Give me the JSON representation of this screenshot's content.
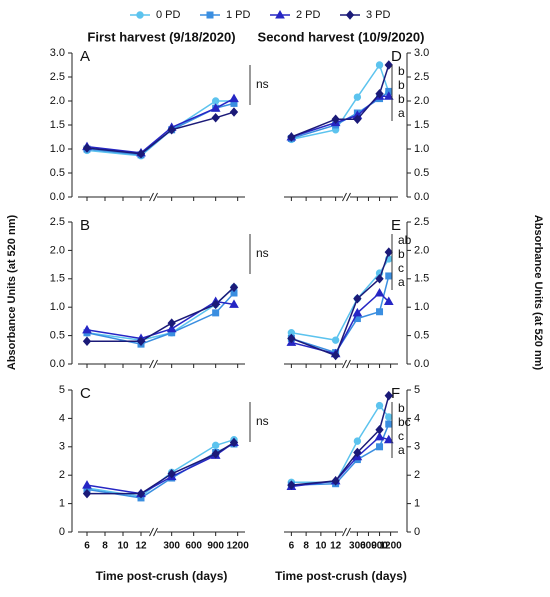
{
  "chart_data": [
    {
      "type": "line",
      "label": "A",
      "title": "First harvest (9/18/2020)",
      "yaxis_side": "left",
      "x": [
        6,
        12,
        300,
        900,
        1150
      ],
      "xsegments": [
        {
          "xlim": [
            5,
            13
          ],
          "xticks": [
            6,
            8,
            10,
            12
          ]
        },
        {
          "xlim": [
            100,
            1300
          ],
          "xticks": [
            300,
            600,
            900,
            1200
          ]
        }
      ],
      "ylim": [
        0,
        3
      ],
      "yticks": [
        {
          "value": 0,
          "label": "0.0"
        },
        0.5,
        {
          "value": 1,
          "label": "1.0"
        },
        1.5,
        {
          "value": 2,
          "label": "2.0"
        },
        2.5,
        {
          "value": 3,
          "label": "3.0"
        }
      ],
      "series": [
        {
          "name": "0 PD",
          "color": "#5cc3ee",
          "marker": "circle",
          "values": [
            0.97,
            0.86,
            1.4,
            2.0,
            2.0
          ]
        },
        {
          "name": "1 PD",
          "color": "#3a8ee0",
          "marker": "square",
          "values": [
            1.0,
            0.88,
            1.4,
            1.85,
            1.95
          ]
        },
        {
          "name": "2 PD",
          "color": "#2626c4",
          "marker": "triangle",
          "values": [
            1.05,
            0.92,
            1.45,
            1.85,
            2.05
          ]
        },
        {
          "name": "3 PD",
          "color": "#1b1a78",
          "marker": "diamond",
          "values": [
            1.02,
            0.9,
            1.4,
            1.65,
            1.77
          ]
        }
      ],
      "annotations": [
        "ns"
      ]
    },
    {
      "type": "line",
      "label": "B",
      "ylabel": "Absorbance Units (at 520 nm)",
      "yaxis_side": "left",
      "x": [
        6,
        12,
        300,
        900,
        1150
      ],
      "xsegments": [
        {
          "xlim": [
            5,
            13
          ],
          "xticks": [
            6,
            8,
            10,
            12
          ]
        },
        {
          "xlim": [
            100,
            1300
          ],
          "xticks": [
            300,
            600,
            900,
            1200
          ]
        }
      ],
      "ylim": [
        0,
        2.5
      ],
      "yticks": [
        {
          "value": 0,
          "label": "0.0"
        },
        0.5,
        {
          "value": 1,
          "label": "1.0"
        },
        1.5,
        {
          "value": 2,
          "label": "2.0"
        },
        2.5
      ],
      "series": [
        {
          "name": "0 PD",
          "color": "#5cc3ee",
          "marker": "circle",
          "values": [
            0.55,
            0.42,
            0.55,
            1.05,
            1.35
          ]
        },
        {
          "name": "1 PD",
          "color": "#3a8ee0",
          "marker": "square",
          "values": [
            0.55,
            0.35,
            0.55,
            0.9,
            1.25
          ]
        },
        {
          "name": "2 PD",
          "color": "#2626c4",
          "marker": "triangle",
          "values": [
            0.6,
            0.45,
            0.62,
            1.1,
            1.05
          ]
        },
        {
          "name": "3 PD",
          "color": "#1b1a78",
          "marker": "diamond",
          "values": [
            0.4,
            0.4,
            0.72,
            1.05,
            1.35
          ]
        }
      ],
      "annotations": [
        "ns"
      ]
    },
    {
      "type": "line",
      "label": "C",
      "xlabel": "Time post-crush (days)",
      "yaxis_side": "left",
      "x": [
        6,
        12,
        300,
        900,
        1150
      ],
      "xsegments": [
        {
          "xlim": [
            5,
            13
          ],
          "xticks": [
            6,
            8,
            10,
            12
          ]
        },
        {
          "xlim": [
            100,
            1300
          ],
          "xticks": [
            300,
            600,
            900,
            1200
          ]
        }
      ],
      "ylim": [
        0,
        5
      ],
      "yticks": [
        0,
        1,
        2,
        3,
        4,
        5
      ],
      "series": [
        {
          "name": "0 PD",
          "color": "#5cc3ee",
          "marker": "circle",
          "values": [
            1.55,
            1.25,
            2.1,
            3.05,
            3.25
          ]
        },
        {
          "name": "1 PD",
          "color": "#3a8ee0",
          "marker": "square",
          "values": [
            1.5,
            1.2,
            1.9,
            2.8,
            3.1
          ]
        },
        {
          "name": "2 PD",
          "color": "#2626c4",
          "marker": "triangle",
          "values": [
            1.65,
            1.35,
            1.95,
            2.7,
            3.15
          ]
        },
        {
          "name": "3 PD",
          "color": "#1b1a78",
          "marker": "diamond",
          "values": [
            1.35,
            1.35,
            2.05,
            2.75,
            3.15
          ]
        }
      ],
      "annotations": [
        "ns"
      ]
    },
    {
      "type": "line",
      "label": "D",
      "title": "Second harvest (10/9/2020)",
      "yaxis_side": "right",
      "x": [
        6,
        12,
        300,
        900,
        1150
      ],
      "xsegments": [
        {
          "xlim": [
            5,
            13
          ],
          "xticks": [
            6,
            8,
            10,
            12
          ]
        },
        {
          "xlim": [
            100,
            1400
          ],
          "xticks": [
            300,
            600,
            900,
            1200
          ]
        }
      ],
      "ylim": [
        0,
        3
      ],
      "yticks": [
        {
          "value": 0,
          "label": "0.0"
        },
        0.5,
        {
          "value": 1,
          "label": "1.0"
        },
        1.5,
        {
          "value": 2,
          "label": "2.0"
        },
        2.5,
        {
          "value": 3,
          "label": "3.0"
        }
      ],
      "series": [
        {
          "name": "0 PD",
          "color": "#5cc3ee",
          "marker": "circle",
          "values": [
            1.2,
            1.4,
            2.08,
            2.75,
            2.18
          ]
        },
        {
          "name": "1 PD",
          "color": "#3a8ee0",
          "marker": "square",
          "values": [
            1.22,
            1.5,
            1.75,
            2.05,
            2.2
          ]
        },
        {
          "name": "2 PD",
          "color": "#2626c4",
          "marker": "triangle",
          "values": [
            1.25,
            1.55,
            1.7,
            2.1,
            2.1
          ]
        },
        {
          "name": "3 PD",
          "color": "#1b1a78",
          "marker": "diamond",
          "values": [
            1.25,
            1.62,
            1.62,
            2.15,
            2.75
          ]
        }
      ],
      "annotations": [
        "b",
        "b",
        "b",
        "a"
      ]
    },
    {
      "type": "line",
      "label": "E",
      "ylabel": "Absorbance Units (at 520 nm)",
      "yaxis_side": "right",
      "x": [
        6,
        12,
        300,
        900,
        1150
      ],
      "xsegments": [
        {
          "xlim": [
            5,
            13
          ],
          "xticks": [
            6,
            8,
            10,
            12
          ]
        },
        {
          "xlim": [
            100,
            1400
          ],
          "xticks": [
            300,
            600,
            900,
            1200
          ]
        }
      ],
      "ylim": [
        0,
        2.5
      ],
      "yticks": [
        {
          "value": 0,
          "label": "0.0"
        },
        0.5,
        {
          "value": 1,
          "label": "1.0"
        },
        1.5,
        {
          "value": 2,
          "label": "2.0"
        },
        2.5
      ],
      "series": [
        {
          "name": "0 PD",
          "color": "#5cc3ee",
          "marker": "circle",
          "values": [
            0.55,
            0.42,
            1.15,
            1.6,
            1.85
          ]
        },
        {
          "name": "1 PD",
          "color": "#3a8ee0",
          "marker": "square",
          "values": [
            0.45,
            0.2,
            0.8,
            0.92,
            1.55
          ]
        },
        {
          "name": "2 PD",
          "color": "#2626c4",
          "marker": "triangle",
          "values": [
            0.38,
            0.18,
            0.9,
            1.25,
            1.1
          ]
        },
        {
          "name": "3 PD",
          "color": "#1b1a78",
          "marker": "diamond",
          "values": [
            0.45,
            0.15,
            1.15,
            1.5,
            1.97
          ]
        }
      ],
      "annotations": [
        "ab",
        "b",
        "c",
        "a"
      ]
    },
    {
      "type": "line",
      "label": "F",
      "xlabel": "Time post-crush (days)",
      "yaxis_side": "right",
      "x": [
        6,
        12,
        300,
        900,
        1150
      ],
      "xsegments": [
        {
          "xlim": [
            5,
            13
          ],
          "xticks": [
            6,
            8,
            10,
            12
          ]
        },
        {
          "xlim": [
            100,
            1400
          ],
          "xticks": [
            300,
            600,
            900,
            1200
          ]
        }
      ],
      "ylim": [
        0,
        5
      ],
      "yticks": [
        0,
        1,
        2,
        3,
        4,
        5
      ],
      "series": [
        {
          "name": "0 PD",
          "color": "#5cc3ee",
          "marker": "circle",
          "values": [
            1.75,
            1.75,
            3.2,
            4.45,
            4.05
          ]
        },
        {
          "name": "1 PD",
          "color": "#3a8ee0",
          "marker": "square",
          "values": [
            1.65,
            1.7,
            2.55,
            3.0,
            3.8
          ]
        },
        {
          "name": "2 PD",
          "color": "#2626c4",
          "marker": "triangle",
          "values": [
            1.6,
            1.8,
            2.65,
            3.35,
            3.25
          ]
        },
        {
          "name": "3 PD",
          "color": "#1b1a78",
          "marker": "diamond",
          "values": [
            1.65,
            1.8,
            2.8,
            3.6,
            4.8
          ]
        }
      ],
      "annotations": [
        "b",
        "bc",
        "c",
        "a"
      ]
    }
  ]
}
